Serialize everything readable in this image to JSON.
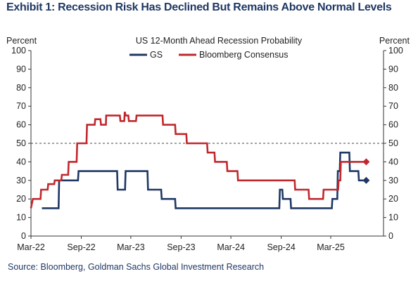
{
  "header": {
    "title": "Exhibit 1: Recession Risk Has Declined But Remains Above Normal Levels"
  },
  "footer": {
    "source": "Source: Bloomberg, Goldman Sachs Global Investment Research"
  },
  "colors": {
    "gs": "#1f3864",
    "bloomberg": "#c0282e",
    "axis": "#333333",
    "title_text": "#1f3864"
  },
  "chart_data": {
    "type": "line",
    "title": "US 12-Month  Ahead  Recession Probability",
    "ylabel_left": "Percent",
    "ylabel_right": "Percent",
    "ylim": [
      0,
      100
    ],
    "y_ticks": [
      "0",
      "10",
      "20",
      "30",
      "40",
      "50",
      "60",
      "70",
      "80",
      "90",
      "100"
    ],
    "x_ticks": [
      {
        "label": "Mar-22",
        "x": "2022-03-01"
      },
      {
        "label": "Sep-22",
        "x": "2022-09-01"
      },
      {
        "label": "Mar-23",
        "x": "2023-03-01"
      },
      {
        "label": "Sep-23",
        "x": "2023-09-01"
      },
      {
        "label": "Mar-24",
        "x": "2024-03-01"
      },
      {
        "label": "Sep-24",
        "x": "2024-09-01"
      },
      {
        "label": "Mar-25",
        "x": "2025-03-01"
      }
    ],
    "xlim": [
      "2022-03-01",
      "2025-09-10"
    ],
    "reference_line": {
      "y": 50,
      "style": "dashed"
    },
    "legend_placement": "top-center",
    "series": [
      {
        "name": "GS",
        "step": true,
        "points": [
          [
            "2022-04-10",
            15
          ],
          [
            "2022-06-10",
            15
          ],
          [
            "2022-06-12",
            30
          ],
          [
            "2022-08-20",
            30
          ],
          [
            "2022-08-22",
            35
          ],
          [
            "2023-01-10",
            35
          ],
          [
            "2023-01-12",
            25
          ],
          [
            "2023-02-08",
            25
          ],
          [
            "2023-02-10",
            35
          ],
          [
            "2023-05-01",
            35
          ],
          [
            "2023-05-03",
            25
          ],
          [
            "2023-06-20",
            25
          ],
          [
            "2023-06-22",
            20
          ],
          [
            "2023-08-10",
            20
          ],
          [
            "2023-08-12",
            15
          ],
          [
            "2024-08-25",
            15
          ],
          [
            "2024-08-27",
            25
          ],
          [
            "2024-09-05",
            25
          ],
          [
            "2024-09-07",
            20
          ],
          [
            "2024-10-05",
            20
          ],
          [
            "2024-10-07",
            15
          ],
          [
            "2025-03-05",
            15
          ],
          [
            "2025-03-07",
            20
          ],
          [
            "2025-03-25",
            20
          ],
          [
            "2025-03-27",
            35
          ],
          [
            "2025-04-03",
            35
          ],
          [
            "2025-04-05",
            45
          ],
          [
            "2025-05-08",
            45
          ],
          [
            "2025-05-10",
            35
          ],
          [
            "2025-06-10",
            35
          ],
          [
            "2025-06-12",
            30
          ],
          [
            "2025-07-01",
            30
          ]
        ],
        "end_marker": {
          "x": "2025-07-01",
          "y": 30,
          "shape": "diamond"
        }
      },
      {
        "name": "Bloomberg Consensus",
        "step": true,
        "points": [
          [
            "2022-03-01",
            15
          ],
          [
            "2022-03-08",
            20
          ],
          [
            "2022-04-05",
            20
          ],
          [
            "2022-04-07",
            25
          ],
          [
            "2022-05-01",
            25
          ],
          [
            "2022-05-03",
            28
          ],
          [
            "2022-05-25",
            28
          ],
          [
            "2022-05-27",
            30
          ],
          [
            "2022-06-20",
            30
          ],
          [
            "2022-06-22",
            33
          ],
          [
            "2022-07-15",
            33
          ],
          [
            "2022-07-17",
            40
          ],
          [
            "2022-08-15",
            40
          ],
          [
            "2022-08-17",
            50
          ],
          [
            "2022-09-20",
            50
          ],
          [
            "2022-09-22",
            60
          ],
          [
            "2022-10-20",
            60
          ],
          [
            "2022-10-22",
            63
          ],
          [
            "2022-11-10",
            63
          ],
          [
            "2022-11-12",
            60
          ],
          [
            "2022-11-30",
            60
          ],
          [
            "2022-12-01",
            65
          ],
          [
            "2023-01-20",
            65
          ],
          [
            "2023-01-22",
            62
          ],
          [
            "2023-02-05",
            62
          ],
          [
            "2023-02-07",
            67
          ],
          [
            "2023-02-10",
            65
          ],
          [
            "2023-02-20",
            65
          ],
          [
            "2023-02-22",
            62
          ],
          [
            "2023-03-20",
            62
          ],
          [
            "2023-03-22",
            65
          ],
          [
            "2023-06-25",
            65
          ],
          [
            "2023-06-27",
            60
          ],
          [
            "2023-08-10",
            60
          ],
          [
            "2023-08-12",
            55
          ],
          [
            "2023-09-20",
            55
          ],
          [
            "2023-09-22",
            50
          ],
          [
            "2023-12-05",
            50
          ],
          [
            "2023-12-07",
            45
          ],
          [
            "2024-01-01",
            45
          ],
          [
            "2024-01-03",
            40
          ],
          [
            "2024-02-15",
            40
          ],
          [
            "2024-02-17",
            35
          ],
          [
            "2024-03-25",
            35
          ],
          [
            "2024-03-27",
            30
          ],
          [
            "2024-10-20",
            30
          ],
          [
            "2024-10-22",
            25
          ],
          [
            "2024-12-10",
            25
          ],
          [
            "2024-12-12",
            20
          ],
          [
            "2025-02-01",
            20
          ],
          [
            "2025-02-03",
            25
          ],
          [
            "2025-03-28",
            25
          ],
          [
            "2025-03-30",
            30
          ],
          [
            "2025-04-05",
            30
          ],
          [
            "2025-04-07",
            40
          ],
          [
            "2025-07-01",
            40
          ]
        ],
        "end_marker": {
          "x": "2025-07-01",
          "y": 40,
          "shape": "diamond"
        }
      }
    ]
  }
}
